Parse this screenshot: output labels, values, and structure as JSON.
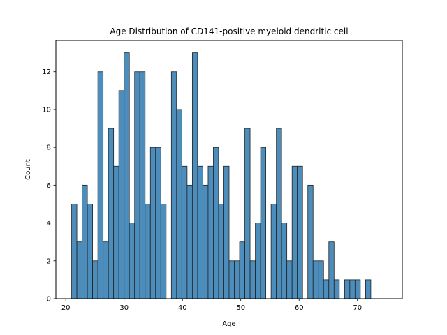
{
  "chart_data": {
    "type": "bar",
    "title": "Age Distribution of CD141-positive myeloid dendritic cell",
    "xlabel": "Age",
    "ylabel": "Count",
    "xlim": [
      18.3,
      77.7
    ],
    "ylim": [
      0,
      13.65
    ],
    "xticks": [
      20,
      30,
      40,
      50,
      60,
      70
    ],
    "yticks": [
      0,
      2,
      4,
      6,
      8,
      10,
      12
    ],
    "bin_start": 21,
    "bin_width": 0.9,
    "bar_color": "#4c8dbc",
    "edge_color": "#222222",
    "grid": false,
    "legend": "none",
    "counts": [
      5,
      3,
      6,
      5,
      2,
      12,
      3,
      9,
      7,
      11,
      13,
      4,
      12,
      12,
      5,
      8,
      8,
      5,
      0,
      12,
      10,
      7,
      6,
      13,
      7,
      6,
      7,
      8,
      5,
      7,
      2,
      2,
      3,
      9,
      2,
      4,
      8,
      0,
      5,
      9,
      4,
      2,
      7,
      7,
      0,
      6,
      2,
      2,
      1,
      3,
      1,
      0,
      1,
      1,
      1,
      0,
      1
    ]
  }
}
